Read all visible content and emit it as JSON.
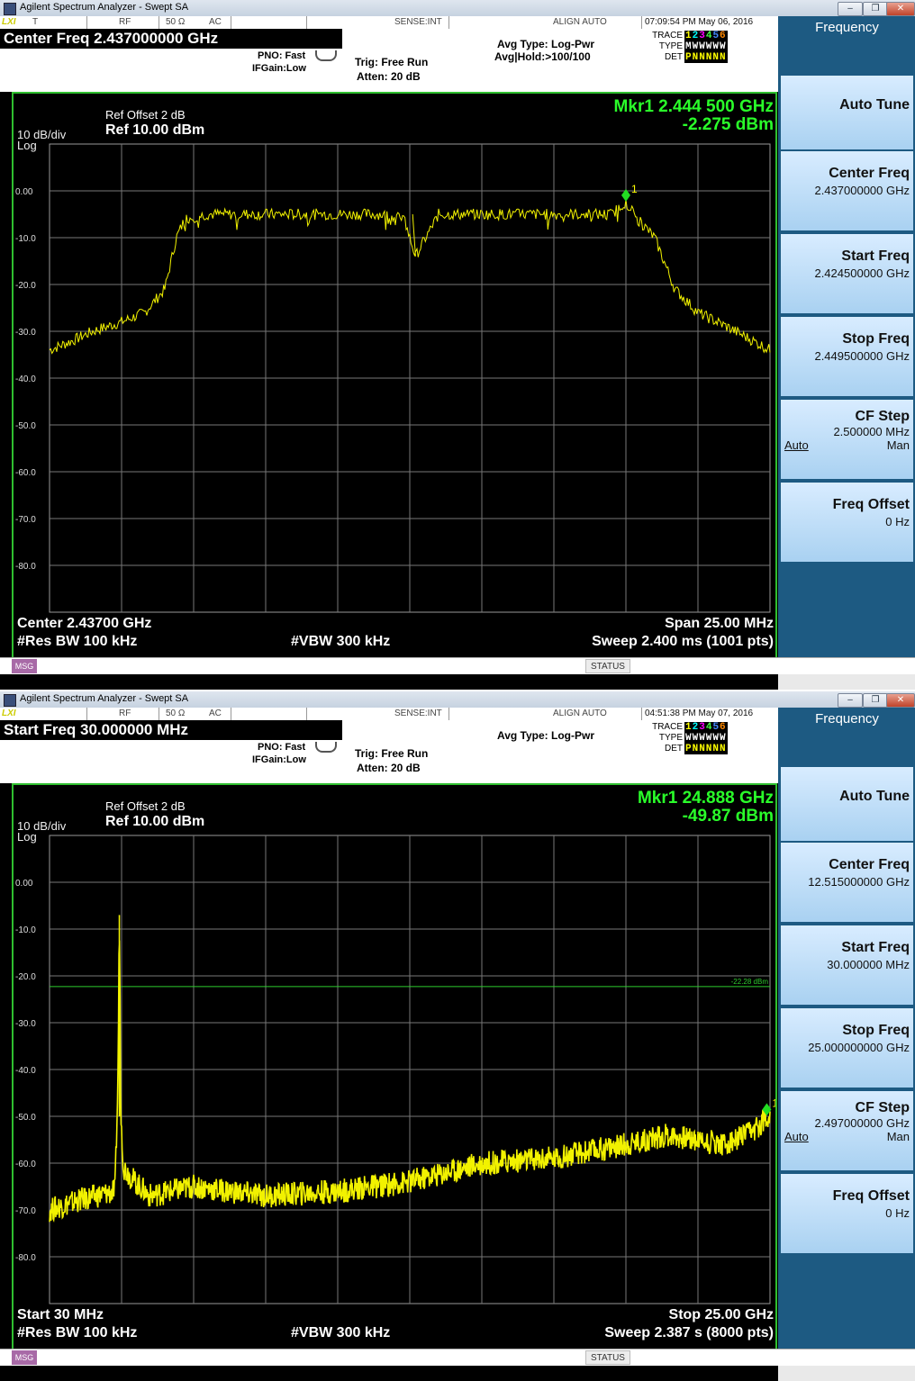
{
  "panels": [
    {
      "window_title": "Agilent Spectrum Analyzer - Swept SA",
      "status": {
        "t": "T",
        "rf": "RF",
        "ohm": "50 Ω",
        "ac": "AC",
        "sense": "SENSE:INT",
        "align": "ALIGN AUTO",
        "datetime": "07:09:54 PM May 06, 2016"
      },
      "header": {
        "main": "Center Freq 2.437000000 GHz",
        "pno": "PNO: Fast",
        "ifgain": "IFGain:Low",
        "trig": "Trig: Free Run",
        "atten": "Atten: 20 dB",
        "avg_type": "Avg Type: Log-Pwr",
        "avg_hold": "Avg|Hold:>100/100",
        "trace_label": "TRACE",
        "trace_val": "123456",
        "type_label": "TYPE",
        "type_val": "MWWWWW",
        "det_label": "DET",
        "det_val": "PNNNNN"
      },
      "screen": {
        "ref_offset": "Ref Offset 2 dB",
        "scale": "10 dB/div",
        "log": "Log",
        "ref": "Ref 10.00 dBm",
        "mkr_freq": "Mkr1 2.444 500 GHz",
        "mkr_amp": "-2.275 dBm",
        "marker_num": "1",
        "yticks": [
          "0.00",
          "-10.0",
          "-20.0",
          "-30.0",
          "-40.0",
          "-50.0",
          "-60.0",
          "-70.0",
          "-80.0"
        ],
        "bottom_left": "Center 2.43700 GHz",
        "bottom_right": "Span 25.00 MHz",
        "rbw": "#Res BW 100 kHz",
        "vbw": "#VBW 300 kHz",
        "sweep": "Sweep  2.400 ms (1001 pts)"
      },
      "msg": "MSG",
      "status_btn": "STATUS",
      "softkeys": {
        "title": "Frequency",
        "auto_tune": "Auto Tune",
        "center_freq": "Center Freq",
        "center_val": "2.437000000 GHz",
        "start_freq": "Start Freq",
        "start_val": "2.424500000 GHz",
        "stop_freq": "Stop Freq",
        "stop_val": "2.449500000 GHz",
        "cf_step": "CF Step",
        "cf_val": "2.500000 MHz",
        "auto": "Auto",
        "man": "Man",
        "freq_offset": "Freq Offset",
        "offset_val": "0 Hz"
      }
    },
    {
      "window_title": "Agilent Spectrum Analyzer - Swept SA",
      "status": {
        "t": "",
        "rf": "RF",
        "ohm": "50 Ω",
        "ac": "AC",
        "sense": "SENSE:INT",
        "align": "ALIGN AUTO",
        "datetime": "04:51:38 PM May 07, 2016"
      },
      "header": {
        "main": "Start Freq 30.000000 MHz",
        "pno": "PNO: Fast",
        "ifgain": "IFGain:Low",
        "trig": "Trig: Free Run",
        "atten": "Atten: 20 dB",
        "avg_type": "Avg Type: Log-Pwr",
        "avg_hold": "",
        "trace_label": "TRACE",
        "trace_val": "123456",
        "type_label": "TYPE",
        "type_val": "WWWWWW",
        "det_label": "DET",
        "det_val": "PNNNNN"
      },
      "screen": {
        "ref_offset": "Ref Offset 2 dB",
        "scale": "10 dB/div",
        "log": "Log",
        "ref": "Ref 10.00 dBm",
        "mkr_freq": "Mkr1 24.888 GHz",
        "mkr_amp": "-49.87 dBm",
        "marker_num": "1",
        "line_label": "-22.28 dBm",
        "yticks": [
          "0.00",
          "-10.0",
          "-20.0",
          "-30.0",
          "-40.0",
          "-50.0",
          "-60.0",
          "-70.0",
          "-80.0"
        ],
        "bottom_left": "Start 30 MHz",
        "bottom_right": "Stop 25.00 GHz",
        "rbw": "#Res BW 100 kHz",
        "vbw": "#VBW 300 kHz",
        "sweep": "Sweep  2.387 s (8000 pts)"
      },
      "msg": "MSG",
      "status_btn": "STATUS",
      "softkeys": {
        "title": "Frequency",
        "auto_tune": "Auto Tune",
        "center_freq": "Center Freq",
        "center_val": "12.515000000 GHz",
        "start_freq": "Start Freq",
        "start_val": "30.000000 MHz",
        "stop_freq": "Stop Freq",
        "stop_val": "25.000000000 GHz",
        "cf_step": "CF Step",
        "cf_val": "2.497000000 GHz",
        "auto": "Auto",
        "man": "Man",
        "freq_offset": "Freq Offset",
        "offset_val": "0 Hz"
      }
    }
  ],
  "chart_data": [
    {
      "type": "line",
      "xlabel": "",
      "ylabel": "",
      "xlim": [
        2.4245,
        2.4495
      ],
      "ylim": [
        -90,
        10
      ],
      "grid": true,
      "x": [
        2.4245,
        2.4253,
        2.426,
        2.427,
        2.4278,
        2.4285,
        2.4289,
        2.4292,
        2.43,
        2.432,
        2.434,
        2.436,
        2.4368,
        2.4372,
        2.438,
        2.44,
        2.442,
        2.444,
        2.4445,
        2.4449,
        2.4455,
        2.4462,
        2.447,
        2.448,
        2.4495
      ],
      "series": [
        {
          "values": [
            -34,
            -32,
            -30,
            -28,
            -26,
            -21,
            -10,
            -6,
            -5,
            -5,
            -5,
            -5,
            -6,
            -14,
            -5,
            -5,
            -5,
            -5,
            -2.3,
            -6,
            -10,
            -21,
            -26,
            -29,
            -34
          ]
        }
      ],
      "markers": [
        {
          "x": 2.4445,
          "y": -2.275
        }
      ]
    },
    {
      "type": "line",
      "xlabel": "",
      "ylabel": "",
      "xlim": [
        0.03,
        25.0
      ],
      "ylim": [
        -90,
        10
      ],
      "grid": true,
      "x": [
        0.03,
        1.0,
        2.3,
        2.4,
        2.45,
        2.5,
        2.6,
        3.0,
        3.5,
        5.0,
        7.5,
        10.0,
        12.5,
        15.0,
        17.5,
        20.0,
        21.5,
        22.5,
        23.5,
        24.5,
        24.888
      ],
      "series": [
        {
          "values": [
            -70,
            -68,
            -66,
            -43,
            -7,
            -50,
            -61,
            -64,
            -67,
            -65,
            -67,
            -66,
            -64,
            -60,
            -59,
            -56,
            -54,
            -55,
            -56,
            -53,
            -49.87
          ]
        }
      ],
      "threshold_line": -22.28,
      "markers": [
        {
          "x": 24.888,
          "y": -49.87
        }
      ]
    }
  ]
}
